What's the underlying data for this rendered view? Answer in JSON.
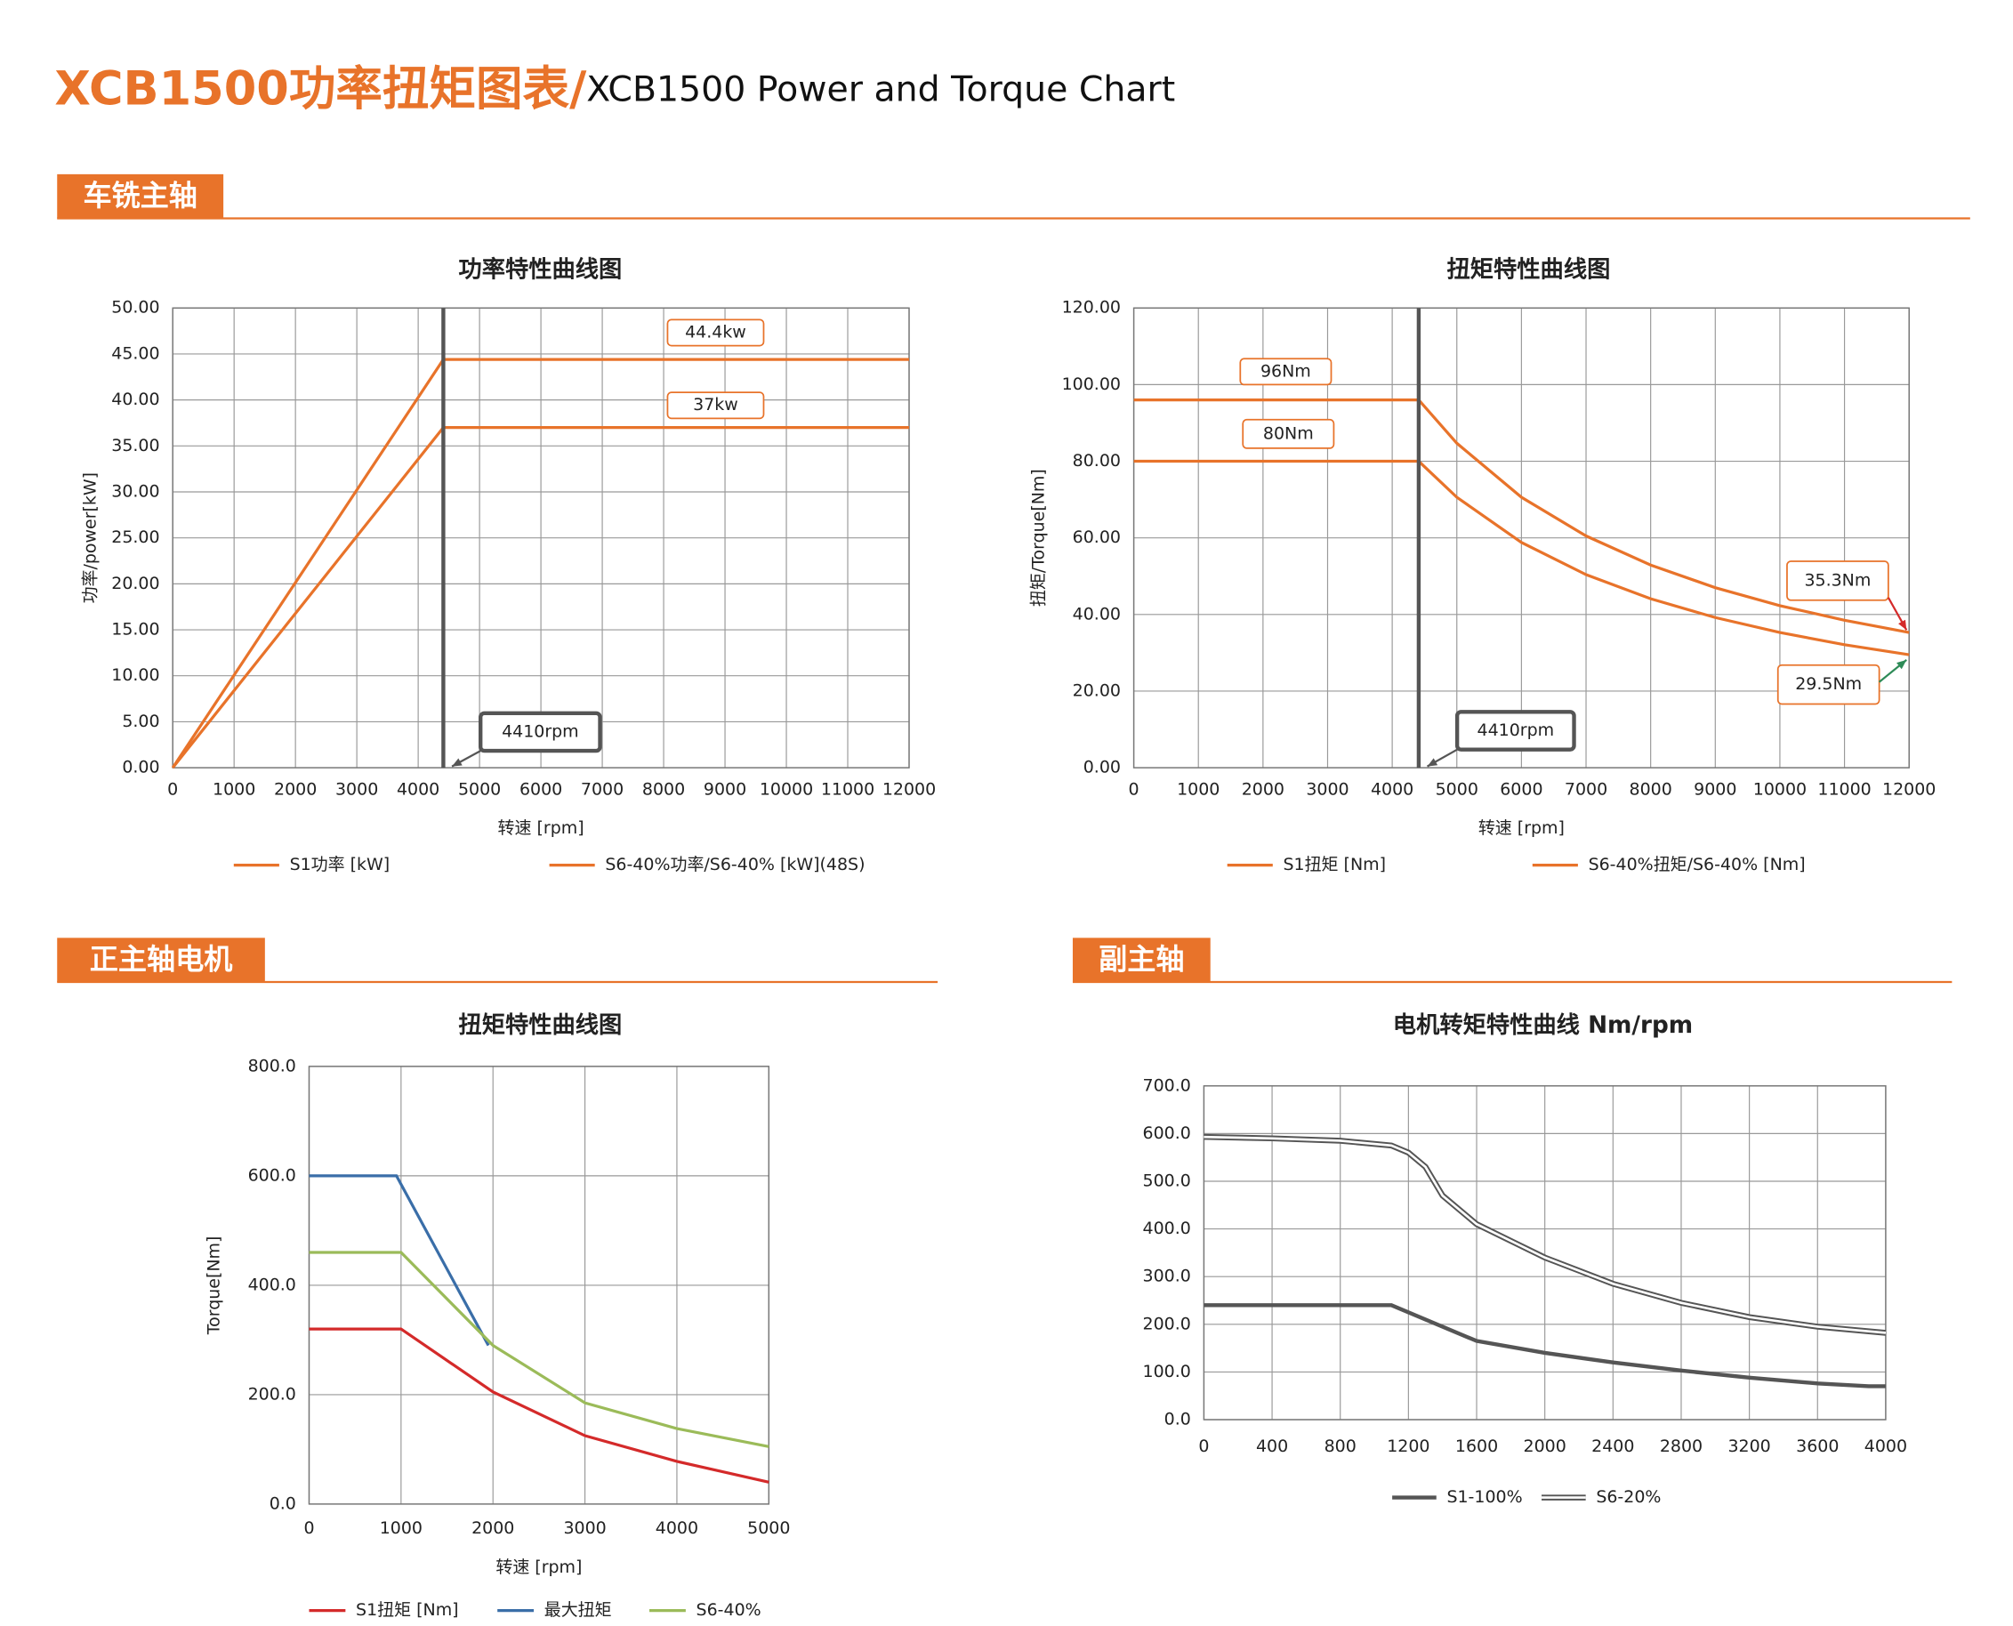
{
  "header": {
    "title_cn": "XCB1500功率扭矩图表/",
    "title_en": "XCB1500 Power and Torque Chart"
  },
  "sections": [
    "车铣主轴",
    "正主轴电机",
    "副主轴"
  ],
  "chart_data": [
    {
      "type": "line",
      "title": "功率特性曲线图",
      "x_label": "转速 [rpm]",
      "y_label": "功率/power[kW]",
      "xlim": [
        0,
        12000
      ],
      "xticks": [
        0,
        1000,
        2000,
        3000,
        4000,
        5000,
        6000,
        7000,
        8000,
        9000,
        10000,
        11000,
        12000
      ],
      "ylim": [
        0,
        50
      ],
      "yticks": [
        {
          "value": 0,
          "label": "0.00"
        },
        {
          "value": 5,
          "label": "5.00"
        },
        {
          "value": 10,
          "label": "10.00"
        },
        {
          "value": 15,
          "label": "15.00"
        },
        {
          "value": 20,
          "label": "20.00"
        },
        {
          "value": 25,
          "label": "25.00"
        },
        {
          "value": 30,
          "label": "30.00"
        },
        {
          "value": 35,
          "label": "35.00"
        },
        {
          "value": 40,
          "label": "40.00"
        },
        {
          "value": 45,
          "label": "45.00"
        },
        {
          "value": 50,
          "label": "50.00"
        }
      ],
      "grid": true,
      "marker_x": 4410,
      "series": [
        {
          "name": "S1功率 [kW]",
          "color": "#e8732a",
          "x": [
            0,
            4410,
            12000
          ],
          "values": [
            0,
            37,
            37
          ]
        },
        {
          "name": "S6-40%功率/S6-40% [kW](48S)",
          "color": "#e8732a",
          "x": [
            0,
            4410,
            12000
          ],
          "values": [
            0,
            44.4,
            44.4
          ]
        }
      ],
      "annotations": [
        "44.4kw",
        "37kw",
        "4410rpm"
      ]
    },
    {
      "type": "line",
      "title": "扭矩特性曲线图",
      "x_label": "转速 [rpm]",
      "y_label": "扭矩/Torque[Nm]",
      "xlim": [
        0,
        12000
      ],
      "xticks": [
        0,
        1000,
        2000,
        3000,
        4000,
        5000,
        6000,
        7000,
        8000,
        9000,
        10000,
        11000,
        12000
      ],
      "ylim": [
        0,
        120
      ],
      "yticks": [
        {
          "value": 0,
          "label": "0.00"
        },
        {
          "value": 20,
          "label": "20.00"
        },
        {
          "value": 40,
          "label": "40.00"
        },
        {
          "value": 60,
          "label": "60.00"
        },
        {
          "value": 80,
          "label": "80.00"
        },
        {
          "value": 100,
          "label": "100.00"
        },
        {
          "value": 120,
          "label": "120.00"
        }
      ],
      "grid": true,
      "marker_x": 4410,
      "series": [
        {
          "name": "S1扭矩 [Nm]",
          "color": "#e8732a",
          "x": [
            0,
            4410,
            5000,
            6000,
            7000,
            8000,
            9000,
            10000,
            11000,
            12000
          ],
          "values": [
            80,
            80,
            70.6,
            58.8,
            50.4,
            44.1,
            39.2,
            35.3,
            32.1,
            29.5
          ]
        },
        {
          "name": "S6-40%扭矩/S6-40% [Nm]",
          "color": "#e8732a",
          "x": [
            0,
            4410,
            5000,
            6000,
            7000,
            8000,
            9000,
            10000,
            11000,
            12000
          ],
          "values": [
            96,
            96,
            84.7,
            70.6,
            60.5,
            52.9,
            47.0,
            42.3,
            38.5,
            35.3
          ]
        }
      ],
      "annotations": [
        "96Nm",
        "80Nm",
        "35.3Nm",
        "29.5Nm",
        "4410rpm"
      ]
    },
    {
      "type": "line",
      "title": "扭矩特性曲线图",
      "x_label": "转速 [rpm]",
      "y_label": "Torque[Nm]",
      "xlim": [
        0,
        5000
      ],
      "xticks": [
        0,
        1000,
        2000,
        3000,
        4000,
        5000
      ],
      "ylim": [
        0,
        800
      ],
      "yticks": [
        {
          "value": 0,
          "label": "0.0"
        },
        {
          "value": 200,
          "label": "200.0"
        },
        {
          "value": 400,
          "label": "400.0"
        },
        {
          "value": 600,
          "label": "600.0"
        },
        {
          "value": 800,
          "label": "800.0"
        }
      ],
      "grid": true,
      "series": [
        {
          "name": "S1扭矩 [Nm]",
          "color": "#d42a2a",
          "x": [
            0,
            1000,
            2000,
            3000,
            4000,
            5000
          ],
          "values": [
            320,
            320,
            205,
            125,
            78,
            40
          ]
        },
        {
          "name": "最大扭矩",
          "color": "#3a6ea8",
          "x": [
            0,
            950,
            1950
          ],
          "values": [
            600,
            600,
            290
          ]
        },
        {
          "name": "S6-40%",
          "color": "#9bbb59",
          "x": [
            0,
            1000,
            2000,
            3000,
            4000,
            5000
          ],
          "values": [
            460,
            460,
            290,
            185,
            138,
            105
          ]
        }
      ]
    },
    {
      "type": "line",
      "title": "电机转矩特性曲线 Nm/rpm",
      "xlim": [
        0,
        4000
      ],
      "xticks": [
        0,
        400,
        800,
        1200,
        1600,
        2000,
        2400,
        2800,
        3200,
        3600,
        4000
      ],
      "ylim": [
        0,
        700
      ],
      "yticks": [
        {
          "value": 0,
          "label": "0.0"
        },
        {
          "value": 100,
          "label": "100.0"
        },
        {
          "value": 200,
          "label": "200.0"
        },
        {
          "value": 300,
          "label": "300.0"
        },
        {
          "value": 400,
          "label": "400.0"
        },
        {
          "value": 500,
          "label": "500.0"
        },
        {
          "value": 600,
          "label": "600.0"
        },
        {
          "value": 700,
          "label": "700.0"
        }
      ],
      "grid": true,
      "series": [
        {
          "name": "S1-100%",
          "color": "#555555",
          "line_style": "single",
          "x": [
            0,
            1100,
            1600,
            2000,
            2400,
            2800,
            3200,
            3600,
            3900,
            4000
          ],
          "values": [
            240,
            240,
            165,
            140,
            120,
            103,
            88,
            76,
            70,
            70
          ]
        },
        {
          "name": "S6-20%",
          "color": "#555555",
          "line_style": "double",
          "x": [
            0,
            400,
            800,
            1100,
            1200,
            1300,
            1400,
            1600,
            2000,
            2400,
            2800,
            3200,
            3600,
            4000
          ],
          "values": [
            593,
            590,
            585,
            575,
            560,
            530,
            470,
            410,
            340,
            285,
            245,
            215,
            195,
            182
          ]
        }
      ]
    }
  ]
}
